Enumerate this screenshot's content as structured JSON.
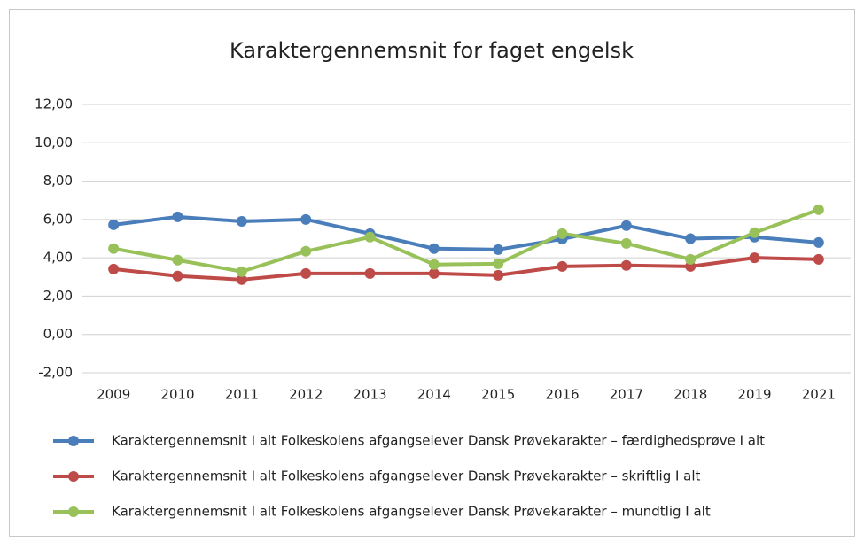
{
  "chart_data": {
    "type": "line",
    "title": "Karaktergennemsnit for faget engelsk",
    "categories": [
      "2009",
      "2010",
      "2011",
      "2012",
      "2013",
      "2014",
      "2015",
      "2016",
      "2017",
      "2018",
      "2019",
      "2021"
    ],
    "series": [
      {
        "name": "Karaktergennemsnit I alt Folkeskolens afgangselever Dansk Prøvekarakter – færdighedsprøve I alt",
        "color": "#4a7ebb",
        "values": [
          5.72,
          6.14,
          5.9,
          6.0,
          5.26,
          4.48,
          4.43,
          4.98,
          5.68,
          5.0,
          5.08,
          4.8
        ]
      },
      {
        "name": "Karaktergennemsnit I alt Folkeskolens afgangselever Dansk Prøvekarakter – skriftlig I alt",
        "color": "#be4b48",
        "values": [
          3.41,
          3.05,
          2.86,
          3.18,
          3.18,
          3.18,
          3.09,
          3.55,
          3.6,
          3.55,
          4.0,
          3.92
        ]
      },
      {
        "name": "Karaktergennemsnit I alt Folkeskolens afgangselever Dansk Prøvekarakter – mundtlig I alt",
        "color": "#98c15a",
        "values": [
          4.48,
          3.88,
          3.28,
          4.34,
          5.08,
          3.65,
          3.69,
          5.26,
          4.75,
          3.92,
          5.31,
          6.51
        ]
      }
    ],
    "ylim": [
      -2,
      12
    ],
    "yticks": [
      {
        "value": -2,
        "label": "-2,00"
      },
      {
        "value": 0,
        "label": "0,00"
      },
      {
        "value": 2,
        "label": "2,00"
      },
      {
        "value": 4,
        "label": "4,00"
      },
      {
        "value": 6,
        "label": "6,00"
      },
      {
        "value": 8,
        "label": "8,00"
      },
      {
        "value": 10,
        "label": "10,00"
      },
      {
        "value": 12,
        "label": "12,00"
      }
    ],
    "grid": true,
    "legend": "bottom"
  }
}
